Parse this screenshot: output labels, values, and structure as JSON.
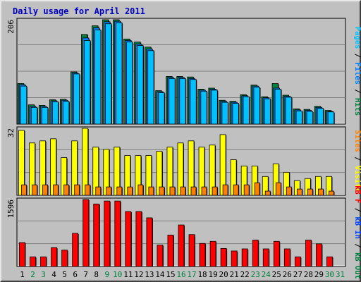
{
  "title": "Daily usage for April 2011",
  "colors": {
    "background": "#c0c0c0",
    "plot": "#c0c0c0",
    "grid": "#808080",
    "title_text": "#0000c0",
    "hits": "#008040",
    "files": "#0080ff",
    "pages": "#00c0ff",
    "visits": "#ffff00",
    "sites": "#ff8000",
    "kb_in": "#ff0000",
    "kb_out": "#0040ff",
    "day_weekend": "#008040",
    "day_weekday": "#000000"
  },
  "chart_data": [
    {
      "type": "bar",
      "name": "hits-files-pages",
      "ymax_label": "206",
      "ylim": [
        0,
        206
      ],
      "axis_label_parts": [
        {
          "text": "Pages",
          "color": "#00c0ff"
        },
        {
          "text": " / ",
          "color": "#000000"
        },
        {
          "text": "Files",
          "color": "#0080ff"
        },
        {
          "text": " / ",
          "color": "#000000"
        },
        {
          "text": "Hits",
          "color": "#008040"
        }
      ],
      "categories": [
        "1",
        "2",
        "3",
        "4",
        "5",
        "6",
        "7",
        "8",
        "9",
        "10",
        "11",
        "12",
        "13",
        "14",
        "15",
        "16",
        "17",
        "18",
        "19",
        "20",
        "21",
        "22",
        "23",
        "24",
        "25",
        "26",
        "27",
        "28",
        "29",
        "30",
        "31"
      ],
      "series": [
        {
          "name": "Hits",
          "color": "#008040",
          "values": [
            80,
            38,
            37,
            48,
            49,
            103,
            177,
            194,
            206,
            206,
            168,
            162,
            152,
            66,
            94,
            94,
            93,
            69,
            71,
            47,
            45,
            58,
            77,
            54,
            80,
            57,
            30,
            29,
            35,
            27,
            0
          ]
        },
        {
          "name": "Files",
          "color": "#0080ff",
          "values": [
            78,
            35,
            35,
            46,
            47,
            101,
            170,
            190,
            202,
            203,
            165,
            158,
            148,
            64,
            92,
            92,
            90,
            67,
            69,
            45,
            43,
            56,
            75,
            52,
            71,
            55,
            28,
            27,
            33,
            25,
            0
          ]
        },
        {
          "name": "Pages",
          "color": "#00c0ff",
          "values": [
            75,
            33,
            33,
            44,
            45,
            99,
            165,
            186,
            198,
            200,
            162,
            155,
            145,
            62,
            90,
            90,
            88,
            65,
            67,
            43,
            41,
            54,
            73,
            50,
            69,
            53,
            26,
            25,
            31,
            24,
            0
          ]
        }
      ]
    },
    {
      "type": "bar",
      "name": "visits-sites",
      "ymax_label": "32",
      "ylim": [
        0,
        32
      ],
      "axis_label_parts": [
        {
          "text": "Sites",
          "color": "#ff8000"
        },
        {
          "text": " / ",
          "color": "#000000"
        },
        {
          "text": "Visits",
          "color": "#ffff00"
        }
      ],
      "categories": [
        "1",
        "2",
        "3",
        "4",
        "5",
        "6",
        "7",
        "8",
        "9",
        "10",
        "11",
        "12",
        "13",
        "14",
        "15",
        "16",
        "17",
        "18",
        "19",
        "20",
        "21",
        "22",
        "23",
        "24",
        "25",
        "26",
        "27",
        "28",
        "29",
        "30",
        "31"
      ],
      "series": [
        {
          "name": "Visits",
          "color": "#ffff00",
          "values": [
            31,
            25,
            26,
            27,
            18,
            26,
            32,
            23,
            22,
            23,
            19,
            19,
            19,
            21,
            23,
            25,
            26,
            23,
            24,
            29,
            17,
            14,
            14,
            9,
            15,
            11,
            7,
            8,
            9,
            9,
            0
          ]
        },
        {
          "name": "Sites",
          "color": "#ff8000",
          "values": [
            5,
            5,
            5,
            5,
            5,
            5,
            5,
            4,
            4,
            4,
            4,
            5,
            4,
            4,
            4,
            4,
            4,
            4,
            4,
            5,
            5,
            5,
            6,
            2,
            6,
            4,
            3,
            3,
            3,
            2,
            0
          ]
        }
      ]
    },
    {
      "type": "bar",
      "name": "kbytes",
      "ymax_label": "1596",
      "ylim": [
        0,
        1596
      ],
      "axis_label_parts": [
        {
          "text": "kB F",
          "color": "#ff0000"
        },
        {
          "text": " / ",
          "color": "#000000"
        },
        {
          "text": "kB In",
          "color": "#0040ff"
        },
        {
          "text": " / ",
          "color": "#000000"
        },
        {
          "text": "kB Out",
          "color": "#008040"
        }
      ],
      "categories": [
        "1",
        "2",
        "3",
        "4",
        "5",
        "6",
        "7",
        "8",
        "9",
        "10",
        "11",
        "12",
        "13",
        "14",
        "15",
        "16",
        "17",
        "18",
        "19",
        "20",
        "21",
        "22",
        "23",
        "24",
        "25",
        "26",
        "27",
        "28",
        "29",
        "30",
        "31"
      ],
      "series": [
        {
          "name": "kB F",
          "color": "#ff0000",
          "values": [
            570,
            230,
            230,
            450,
            390,
            790,
            1596,
            1490,
            1560,
            1560,
            1310,
            1310,
            1160,
            510,
            750,
            990,
            760,
            550,
            600,
            430,
            370,
            420,
            630,
            420,
            600,
            420,
            230,
            630,
            540,
            230,
            0
          ]
        }
      ]
    }
  ],
  "weekend_days": [
    "2",
    "3",
    "9",
    "10",
    "16",
    "17",
    "23",
    "24",
    "30",
    "31"
  ]
}
